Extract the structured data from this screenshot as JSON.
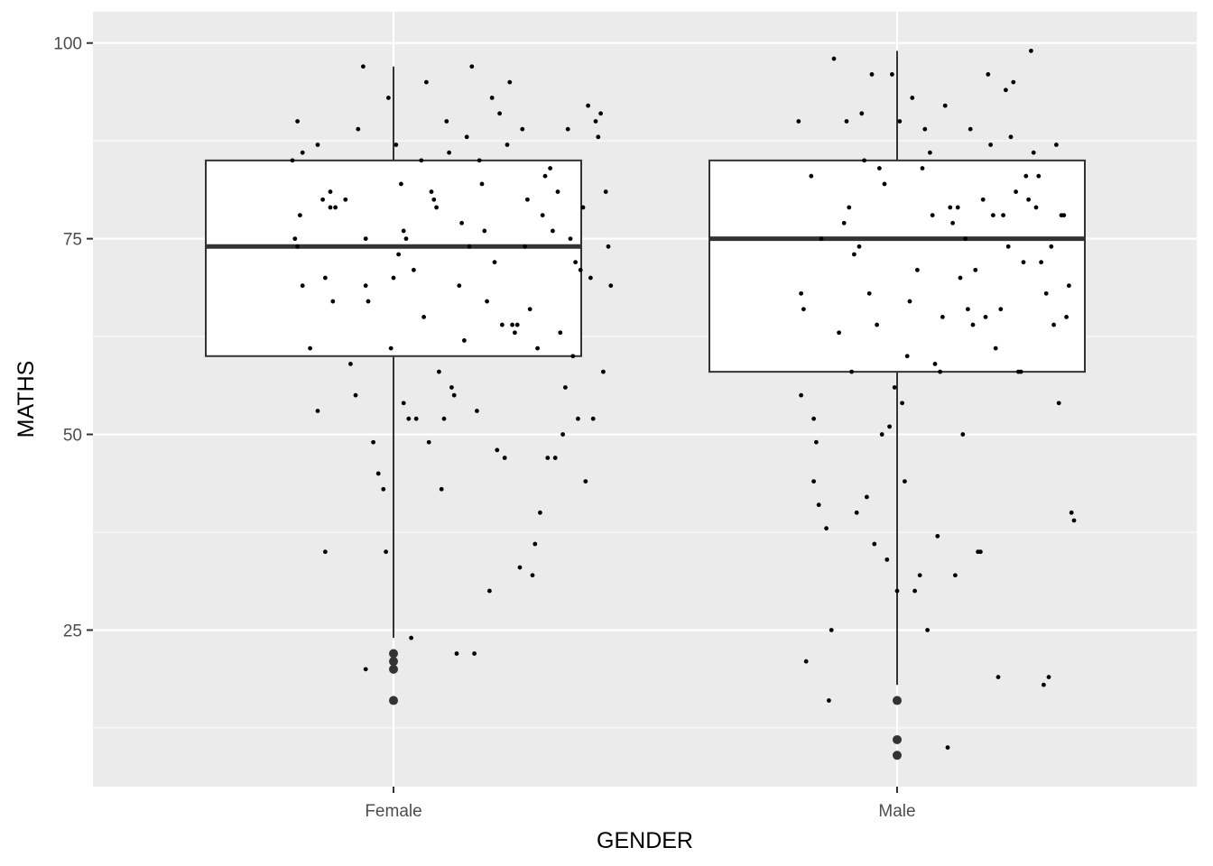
{
  "chart_data": {
    "type": "box",
    "title": "",
    "xlabel": "GENDER",
    "ylabel": "MATHS",
    "categories": [
      "Female",
      "Male"
    ],
    "ylim": [
      5,
      104
    ],
    "y_ticks": [
      25,
      50,
      75,
      100
    ],
    "grid": true,
    "legend": "none",
    "colors": {
      "panel": "#ebebeb",
      "grid_major": "#ffffff",
      "box_fill": "#ffffff",
      "box_line": "#333333",
      "point": "#000000",
      "outlier": "#333333"
    },
    "boxes": [
      {
        "category": "Female",
        "lower_whisker": 24,
        "q1": 60,
        "median": 74,
        "q3": 85,
        "upper_whisker": 97,
        "outliers": [
          22,
          21,
          20,
          16
        ]
      },
      {
        "category": "Male",
        "lower_whisker": 18,
        "q1": 58,
        "median": 75,
        "q3": 85,
        "upper_whisker": 99,
        "outliers": [
          16,
          11,
          9
        ]
      }
    ],
    "jitter_points": [
      {
        "category": "Female",
        "points": [
          [
            -0.4,
            85
          ],
          [
            -0.39,
            75
          ],
          [
            -0.38,
            74
          ],
          [
            -0.38,
            90
          ],
          [
            -0.37,
            78
          ],
          [
            -0.36,
            86
          ],
          [
            -0.36,
            69
          ],
          [
            -0.33,
            61
          ],
          [
            -0.3,
            53
          ],
          [
            -0.3,
            87
          ],
          [
            -0.28,
            80
          ],
          [
            -0.27,
            35
          ],
          [
            -0.27,
            70
          ],
          [
            -0.25,
            81
          ],
          [
            -0.25,
            79
          ],
          [
            -0.24,
            67
          ],
          [
            -0.23,
            79
          ],
          [
            -0.19,
            80
          ],
          [
            -0.17,
            59
          ],
          [
            -0.15,
            55
          ],
          [
            -0.14,
            89
          ],
          [
            -0.12,
            97
          ],
          [
            -0.11,
            20
          ],
          [
            -0.11,
            75
          ],
          [
            -0.11,
            69
          ],
          [
            -0.1,
            67
          ],
          [
            -0.08,
            49
          ],
          [
            -0.06,
            45
          ],
          [
            -0.04,
            43
          ],
          [
            -0.03,
            35
          ],
          [
            -0.02,
            93
          ],
          [
            -0.01,
            61
          ],
          [
            0.0,
            70
          ],
          [
            0.01,
            87
          ],
          [
            0.02,
            73
          ],
          [
            0.03,
            82
          ],
          [
            0.04,
            54
          ],
          [
            0.04,
            76
          ],
          [
            0.05,
            75
          ],
          [
            0.06,
            52
          ],
          [
            0.07,
            24
          ],
          [
            0.08,
            71
          ],
          [
            0.09,
            52
          ],
          [
            0.11,
            85
          ],
          [
            0.12,
            65
          ],
          [
            0.13,
            95
          ],
          [
            0.14,
            49
          ],
          [
            0.15,
            81
          ],
          [
            0.16,
            80
          ],
          [
            0.17,
            79
          ],
          [
            0.18,
            58
          ],
          [
            0.19,
            43
          ],
          [
            0.2,
            52
          ],
          [
            0.21,
            90
          ],
          [
            0.22,
            86
          ],
          [
            0.23,
            56
          ],
          [
            0.24,
            55
          ],
          [
            0.25,
            22
          ],
          [
            0.26,
            69
          ],
          [
            0.27,
            77
          ],
          [
            0.28,
            62
          ],
          [
            0.29,
            88
          ],
          [
            0.3,
            74
          ],
          [
            0.31,
            97
          ],
          [
            0.32,
            22
          ],
          [
            0.33,
            53
          ],
          [
            0.34,
            85
          ],
          [
            0.35,
            82
          ],
          [
            0.36,
            76
          ],
          [
            0.37,
            67
          ],
          [
            0.38,
            30
          ],
          [
            0.39,
            93
          ],
          [
            0.4,
            72
          ],
          [
            0.41,
            48
          ],
          [
            0.42,
            91
          ],
          [
            0.43,
            64
          ],
          [
            0.44,
            47
          ],
          [
            0.45,
            87
          ],
          [
            0.46,
            95
          ],
          [
            0.47,
            64
          ],
          [
            0.48,
            63
          ],
          [
            0.49,
            64
          ],
          [
            0.5,
            33
          ],
          [
            0.51,
            89
          ],
          [
            0.52,
            74
          ],
          [
            0.53,
            80
          ],
          [
            0.54,
            66
          ],
          [
            0.55,
            32
          ],
          [
            0.56,
            36
          ],
          [
            0.57,
            61
          ],
          [
            0.58,
            40
          ],
          [
            0.59,
            78
          ],
          [
            0.6,
            83
          ],
          [
            0.61,
            47
          ],
          [
            0.62,
            84
          ],
          [
            0.63,
            76
          ],
          [
            0.64,
            47
          ],
          [
            0.65,
            81
          ],
          [
            0.66,
            63
          ],
          [
            0.67,
            50
          ],
          [
            0.68,
            56
          ],
          [
            0.69,
            89
          ],
          [
            0.7,
            75
          ],
          [
            0.71,
            60
          ],
          [
            0.72,
            72
          ],
          [
            0.73,
            52
          ],
          [
            0.74,
            71
          ],
          [
            0.75,
            79
          ],
          [
            0.76,
            44
          ],
          [
            0.77,
            92
          ],
          [
            0.78,
            70
          ],
          [
            0.79,
            52
          ],
          [
            0.8,
            90
          ],
          [
            0.81,
            88
          ],
          [
            0.82,
            91
          ],
          [
            0.83,
            58
          ],
          [
            0.84,
            81
          ],
          [
            0.85,
            74
          ],
          [
            0.86,
            69
          ]
        ]
      },
      {
        "category": "Male",
        "points": [
          [
            -0.39,
            90
          ],
          [
            -0.38,
            55
          ],
          [
            -0.38,
            68
          ],
          [
            -0.37,
            66
          ],
          [
            -0.36,
            21
          ],
          [
            -0.34,
            83
          ],
          [
            -0.33,
            52
          ],
          [
            -0.33,
            44
          ],
          [
            -0.32,
            49
          ],
          [
            -0.31,
            41
          ],
          [
            -0.3,
            75
          ],
          [
            -0.28,
            38
          ],
          [
            -0.27,
            16
          ],
          [
            -0.26,
            25
          ],
          [
            -0.25,
            98
          ],
          [
            -0.23,
            63
          ],
          [
            -0.21,
            77
          ],
          [
            -0.2,
            90
          ],
          [
            -0.19,
            79
          ],
          [
            -0.18,
            58
          ],
          [
            -0.17,
            73
          ],
          [
            -0.16,
            40
          ],
          [
            -0.15,
            74
          ],
          [
            -0.14,
            91
          ],
          [
            -0.13,
            85
          ],
          [
            -0.12,
            42
          ],
          [
            -0.11,
            68
          ],
          [
            -0.1,
            96
          ],
          [
            -0.09,
            36
          ],
          [
            -0.08,
            64
          ],
          [
            -0.07,
            84
          ],
          [
            -0.06,
            50
          ],
          [
            -0.05,
            82
          ],
          [
            -0.04,
            34
          ],
          [
            -0.03,
            51
          ],
          [
            -0.02,
            96
          ],
          [
            -0.01,
            56
          ],
          [
            0.0,
            30
          ],
          [
            0.01,
            90
          ],
          [
            0.02,
            54
          ],
          [
            0.03,
            44
          ],
          [
            0.04,
            60
          ],
          [
            0.05,
            67
          ],
          [
            0.06,
            93
          ],
          [
            0.07,
            30
          ],
          [
            0.08,
            71
          ],
          [
            0.09,
            32
          ],
          [
            0.1,
            84
          ],
          [
            0.11,
            89
          ],
          [
            0.12,
            25
          ],
          [
            0.13,
            86
          ],
          [
            0.14,
            78
          ],
          [
            0.15,
            59
          ],
          [
            0.16,
            37
          ],
          [
            0.17,
            58
          ],
          [
            0.18,
            65
          ],
          [
            0.19,
            92
          ],
          [
            0.2,
            10
          ],
          [
            0.21,
            79
          ],
          [
            0.22,
            77
          ],
          [
            0.23,
            32
          ],
          [
            0.24,
            79
          ],
          [
            0.25,
            70
          ],
          [
            0.26,
            50
          ],
          [
            0.27,
            75
          ],
          [
            0.28,
            66
          ],
          [
            0.29,
            89
          ],
          [
            0.3,
            64
          ],
          [
            0.31,
            71
          ],
          [
            0.32,
            35
          ],
          [
            0.33,
            35
          ],
          [
            0.34,
            80
          ],
          [
            0.35,
            65
          ],
          [
            0.36,
            96
          ],
          [
            0.37,
            87
          ],
          [
            0.38,
            78
          ],
          [
            0.39,
            61
          ],
          [
            0.4,
            19
          ],
          [
            0.41,
            66
          ],
          [
            0.42,
            78
          ],
          [
            0.43,
            94
          ],
          [
            0.44,
            74
          ],
          [
            0.45,
            88
          ],
          [
            0.46,
            95
          ],
          [
            0.47,
            81
          ],
          [
            0.48,
            58
          ],
          [
            0.49,
            58
          ],
          [
            0.5,
            72
          ],
          [
            0.51,
            83
          ],
          [
            0.52,
            80
          ],
          [
            0.53,
            99
          ],
          [
            0.54,
            86
          ],
          [
            0.55,
            79
          ],
          [
            0.56,
            83
          ],
          [
            0.57,
            72
          ],
          [
            0.58,
            18
          ],
          [
            0.59,
            68
          ],
          [
            0.6,
            19
          ],
          [
            0.61,
            74
          ],
          [
            0.62,
            64
          ],
          [
            0.63,
            87
          ],
          [
            0.64,
            54
          ],
          [
            0.65,
            78
          ],
          [
            0.66,
            78
          ],
          [
            0.67,
            65
          ],
          [
            0.68,
            69
          ],
          [
            0.69,
            40
          ],
          [
            0.7,
            39
          ]
        ]
      }
    ]
  }
}
